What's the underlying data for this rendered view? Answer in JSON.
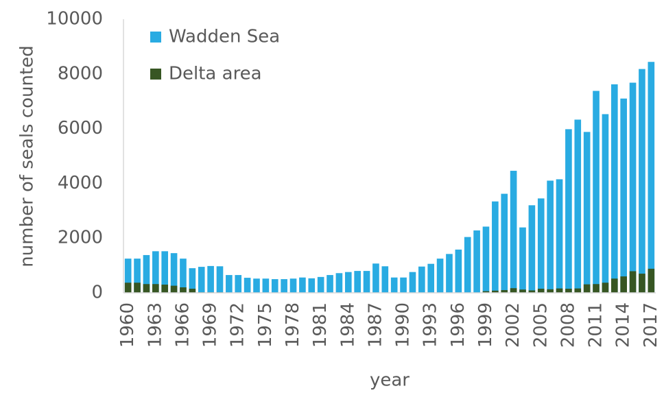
{
  "chart_data": {
    "type": "bar",
    "x_label": "year",
    "y_label": "number of seals counted",
    "categories": [
      "1960",
      null,
      null,
      "1963",
      null,
      null,
      "1966",
      null,
      null,
      "1969",
      null,
      null,
      "1972",
      null,
      null,
      "1975",
      null,
      null,
      "1978",
      null,
      null,
      "1981",
      null,
      null,
      "1984",
      null,
      null,
      "1987",
      null,
      null,
      "1990",
      null,
      null,
      "1993",
      null,
      null,
      "1996",
      null,
      null,
      "1999",
      null,
      null,
      "2002",
      null,
      null,
      "2005",
      null,
      null,
      "2008",
      null,
      null,
      "2011",
      null,
      null,
      "2014",
      null,
      null,
      "2017"
    ],
    "series": [
      {
        "name": "Wadden Sea",
        "color": "#29abe2",
        "values": [
          1250,
          1250,
          1380,
          1520,
          1520,
          1450,
          1250,
          900,
          950,
          980,
          970,
          650,
          650,
          550,
          520,
          520,
          500,
          500,
          520,
          560,
          530,
          580,
          650,
          720,
          760,
          800,
          800,
          1070,
          970,
          560,
          560,
          760,
          960,
          1060,
          1250,
          1420,
          1580,
          2040,
          2280,
          2420,
          3340,
          3620,
          4460,
          2390,
          3200,
          3450,
          4100,
          4150,
          5980,
          6330,
          5880,
          7380,
          6530,
          7620,
          7100,
          7680,
          8180,
          8440
        ]
      },
      {
        "name": "Delta area",
        "color": "#375623",
        "values": [
          370,
          370,
          320,
          320,
          300,
          260,
          200,
          150,
          20,
          20,
          20,
          10,
          10,
          0,
          0,
          0,
          0,
          0,
          0,
          0,
          0,
          0,
          0,
          0,
          0,
          0,
          0,
          0,
          0,
          0,
          0,
          0,
          0,
          0,
          0,
          0,
          0,
          0,
          0,
          60,
          80,
          100,
          170,
          120,
          90,
          150,
          130,
          160,
          150,
          160,
          310,
          320,
          370,
          520,
          600,
          790,
          700,
          880
        ]
      }
    ],
    "ylim": [
      0,
      10000
    ],
    "yticks": [
      0,
      2000,
      4000,
      6000,
      8000,
      10000
    ],
    "grid": false,
    "legend": "top-left"
  }
}
